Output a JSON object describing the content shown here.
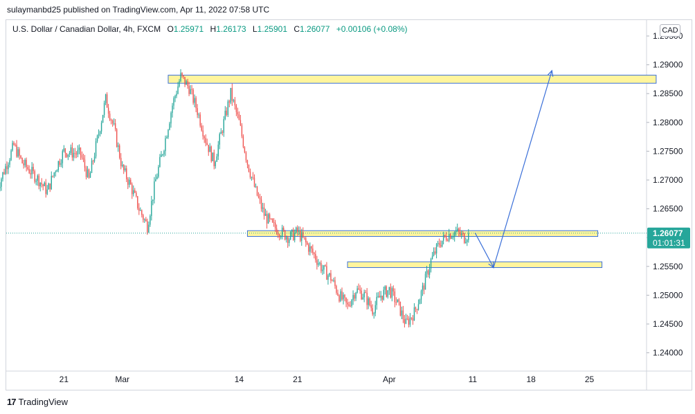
{
  "publisher_line": "sulaymanbd25 published on TradingView.com, Apr 11, 2022 07:58 UTC",
  "legend": {
    "symbol": "U.S. Dollar / Canadian Dollar, 4h, FXCM",
    "open_label": "O",
    "open": "1.25971",
    "high_label": "H",
    "high": "1.26173",
    "low_label": "L",
    "low": "1.25901",
    "close_label": "C",
    "close": "1.26077",
    "change": "+0.00106 (+0.08%)"
  },
  "currency_button": "CAD",
  "footer": {
    "logo_icon": "tradingview-logo-icon",
    "brand": "TradingView"
  },
  "colors": {
    "up": "#26a69a",
    "down": "#ef5350",
    "zone_fill": "#fff59d",
    "zone_border": "#3a6fd8",
    "arrow": "#3a6fd8",
    "price_tag": "#26a69a"
  },
  "chart_data": {
    "type": "candlestick",
    "y_axis": {
      "range": [
        1.237,
        1.297
      ],
      "ticks": [
        "1.29500",
        "1.29000",
        "1.28500",
        "1.28000",
        "1.27500",
        "1.27000",
        "1.26500",
        "1.26000",
        "1.25500",
        "1.25000",
        "1.24500",
        "1.24000"
      ],
      "tick_values": [
        1.295,
        1.29,
        1.285,
        1.28,
        1.275,
        1.27,
        1.265,
        1.26,
        1.255,
        1.25,
        1.245,
        1.24
      ]
    },
    "x_axis": {
      "range_days": [
        -14,
        35
      ],
      "tick_labels": [
        "14",
        "21",
        "Mar",
        "14",
        "21",
        "Apr",
        "11",
        "18",
        "25"
      ],
      "tick_days": [
        -14,
        -7,
        0,
        14,
        21,
        32,
        42,
        49,
        56
      ]
    },
    "last_price": {
      "price": "1.26077",
      "countdown": "01:01:31",
      "value": 1.26077
    },
    "price_path": [
      [
        -15,
        1.2685
      ],
      [
        -13,
        1.276
      ],
      [
        -12,
        1.273
      ],
      [
        -10,
        1.27
      ],
      [
        -9,
        1.268
      ],
      [
        -8,
        1.272
      ],
      [
        -7,
        1.275
      ],
      [
        -5,
        1.2745
      ],
      [
        -4,
        1.27
      ],
      [
        -3,
        1.277
      ],
      [
        -2,
        1.284
      ],
      [
        -1,
        1.279
      ],
      [
        0,
        1.272
      ],
      [
        1,
        1.269
      ],
      [
        2,
        1.265
      ],
      [
        3,
        1.262
      ],
      [
        4,
        1.27
      ],
      [
        5,
        1.276
      ],
      [
        6,
        1.283
      ],
      [
        7,
        1.288
      ],
      [
        8,
        1.286
      ],
      [
        9,
        1.282
      ],
      [
        10,
        1.277
      ],
      [
        11,
        1.273
      ],
      [
        12,
        1.279
      ],
      [
        13,
        1.285
      ],
      [
        14,
        1.28
      ],
      [
        15,
        1.273
      ],
      [
        16,
        1.268
      ],
      [
        17,
        1.264
      ],
      [
        18,
        1.262
      ],
      [
        19,
        1.261
      ],
      [
        20,
        1.26
      ],
      [
        21,
        1.261
      ],
      [
        22,
        1.259
      ],
      [
        23,
        1.257
      ],
      [
        24,
        1.2545
      ],
      [
        25,
        1.253
      ],
      [
        26,
        1.25
      ],
      [
        27,
        1.248
      ],
      [
        28,
        1.251
      ],
      [
        29,
        1.25
      ],
      [
        30,
        1.2475
      ],
      [
        31,
        1.25
      ],
      [
        32,
        1.251
      ],
      [
        33,
        1.2485
      ],
      [
        34,
        1.245
      ],
      [
        35,
        1.247
      ],
      [
        36,
        1.251
      ],
      [
        37,
        1.256
      ],
      [
        38,
        1.259
      ],
      [
        39,
        1.2605
      ],
      [
        40,
        1.261
      ],
      [
        41,
        1.26
      ],
      [
        41.6,
        1.2608
      ]
    ],
    "zones": [
      {
        "from_day": 5.5,
        "to_day": 64,
        "low": 1.2868,
        "high": 1.2882
      },
      {
        "from_day": 15,
        "to_day": 57,
        "low": 1.2602,
        "high": 1.2612
      },
      {
        "from_day": 27,
        "to_day": 57.5,
        "low": 1.2548,
        "high": 1.2558
      }
    ],
    "projection_path": [
      [
        42.3,
        1.2608
      ],
      [
        44.5,
        1.2548
      ],
      [
        51.5,
        1.289
      ]
    ]
  }
}
